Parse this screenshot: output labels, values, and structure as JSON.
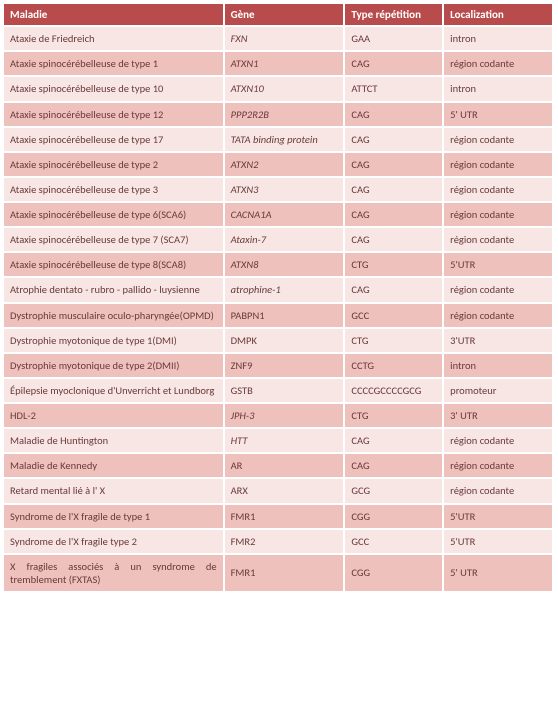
{
  "header_bg": "#b84b4b",
  "header_text_color": "#ffffff",
  "row_colors": {
    "light": "#f7e6e4",
    "dark": "#eec1bd"
  },
  "border_color": "#ffffff",
  "cell_text_color": "#6a3a3a",
  "font_family": "Calibri, 'Segoe UI', Arial, sans-serif",
  "header_font_size_pt": 9,
  "body_font_size_pt": 8,
  "columns": [
    {
      "key": "maladie",
      "label": "Maladie",
      "width_pct": 40
    },
    {
      "key": "gene",
      "label": "Gène",
      "width_pct": 22
    },
    {
      "key": "type",
      "label": "Type répétition",
      "width_pct": 18
    },
    {
      "key": "loc",
      "label": "Localization",
      "width_pct": 20
    }
  ],
  "column_italic": {
    "maladie": false,
    "gene": true,
    "type": false,
    "loc": false
  },
  "column_align": {
    "maladie": "justify",
    "gene": "left",
    "type": "left",
    "loc": "left"
  },
  "rows": [
    {
      "maladie": "Ataxie de Friedreich",
      "gene": "FXN",
      "type": "GAA",
      "loc": "intron"
    },
    {
      "maladie": "Ataxie spinocérébelleuse de type 1",
      "gene": "ATXN1",
      "type": "CAG",
      "loc": "région codante"
    },
    {
      "maladie": "Ataxie spinocérébelleuse de type 10",
      "gene": "ATXN10",
      "type": "ATTCT",
      "loc": "intron"
    },
    {
      "maladie": "Ataxie spinocérébelleuse de type 12",
      "gene": "PPP2R2B",
      "type": "CAG",
      "loc": "5' UTR"
    },
    {
      "maladie": "Ataxie spinocérébelleuse de type 17",
      "gene": "TATA binding protein",
      "type": "CAG",
      "loc": "région codante"
    },
    {
      "maladie": "Ataxie spinocérébelleuse de type 2",
      "gene": "ATXN2",
      "type": "CAG",
      "loc": "région codante"
    },
    {
      "maladie": "Ataxie spinocérébelleuse de type 3",
      "gene": "ATXN3",
      "type": "CAG",
      "loc": "région codante"
    },
    {
      "maladie": "Ataxie spinocérébelleuse de type 6(SCA6)",
      "gene": "CACNA1A",
      "type": "CAG",
      "loc": "région codante"
    },
    {
      "maladie": "Ataxie spinocérébelleuse de type 7 (SCA7)",
      "gene": "Ataxin-7",
      "type": "CAG",
      "loc": "région codante"
    },
    {
      "maladie": "Ataxie spinocérébelleuse de type 8(SCA8)",
      "gene": "ATXN8",
      "type": "CTG",
      "loc": "5'UTR"
    },
    {
      "maladie": "Atrophie dentato - rubro - pallido - luysienne",
      "gene": "atrophine-1",
      "type": "CAG",
      "loc": "région codante"
    },
    {
      "maladie": "Dystrophie musculaire oculo-pharyngée(OPMD)",
      "gene": "PABPN1",
      "type": "GCC",
      "loc": "région codante"
    },
    {
      "maladie": "Dystrophie myotonique de  type 1(DMI)",
      "gene": "DMPK",
      "type": "CTG",
      "loc": "3'UTR"
    },
    {
      "maladie": "Dystrophie myotonique de  type 2(DMII)",
      "gene": "ZNF9",
      "type": "CCTG",
      "loc": "intron"
    },
    {
      "maladie": "Épilepsie myoclonique d'Unverricht et Lundborg",
      "gene": "GSTB",
      "type": "CCCCGCCCCGCG",
      "loc": "promoteur"
    },
    {
      "maladie": "HDL-2",
      "gene": "JPH-3",
      "type": "CTG",
      "loc": "3' UTR"
    },
    {
      "maladie": "Maladie de Huntington",
      "gene": "HTT",
      "type": "CAG",
      "loc": "région codante"
    },
    {
      "maladie": "Maladie de Kennedy",
      "gene": "AR",
      "type": "CAG",
      "loc": "région codante"
    },
    {
      "maladie": "Retard mental lié à  l' X",
      "gene": "ARX",
      "type": "GCG",
      "loc": "région codante"
    },
    {
      "maladie": "Syndrome de l'X fragile de  type 1",
      "gene": "FMR1",
      "type": "CGG",
      "loc": "5'UTR"
    },
    {
      "maladie": "Syndrome de l'X fragile type 2",
      "gene": "FMR2",
      "type": "GCC",
      "loc": "5'UTR"
    },
    {
      "maladie": "X fragiles associés à un syndrome de tremblement (FXTAS)",
      "gene": "FMR1",
      "type": "CGG",
      "loc": "5' UTR"
    }
  ],
  "gene_italic_override": {
    "11": false,
    "12": false,
    "13": false,
    "14": false,
    "17": false,
    "18": false,
    "19": false,
    "20": false,
    "21": false
  }
}
